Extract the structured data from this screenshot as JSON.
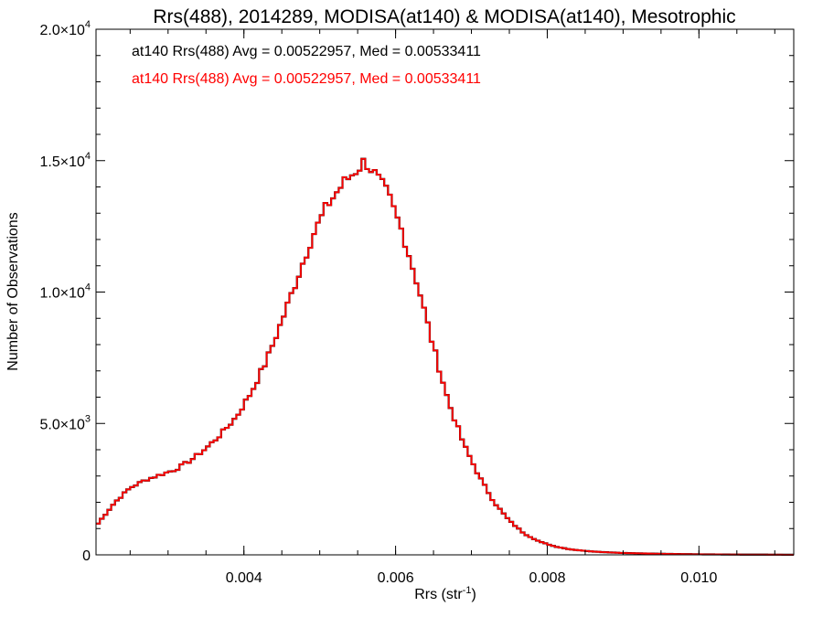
{
  "chart_data": {
    "type": "histogram",
    "title": "Rrs(488), 2014289, MODISA(at140) & MODISA(at140), Mesotrophic",
    "xlabel_main": "Rrs (str",
    "xlabel_sup": "-1",
    "xlabel_end": ")",
    "ylabel": "Number of Observations",
    "xlim": [
      0.00205,
      0.01125
    ],
    "ylim": [
      0,
      20000
    ],
    "x_ticks": [
      {
        "value": 0.004,
        "label": "0.004"
      },
      {
        "value": 0.006,
        "label": "0.006"
      },
      {
        "value": 0.008,
        "label": "0.008"
      },
      {
        "value": 0.01,
        "label": "0.010"
      }
    ],
    "y_ticks": [
      {
        "value": 0,
        "mant": "0",
        "exp": ""
      },
      {
        "value": 5000,
        "mant": "5.0×10",
        "exp": "3"
      },
      {
        "value": 10000,
        "mant": "1.0×10",
        "exp": "4"
      },
      {
        "value": 15000,
        "mant": "1.5×10",
        "exp": "4"
      },
      {
        "value": 20000,
        "mant": "2.0×10",
        "exp": "4"
      }
    ],
    "legend": [
      {
        "text": "at140 Rrs(488) Avg = 0.00522957, Med = 0.00533411",
        "color": "#000000"
      },
      {
        "text": "at140 Rrs(488) Avg = 0.00522957, Med = 0.00533411",
        "color": "#ff0000"
      }
    ],
    "series": [
      {
        "color": "#000000",
        "style": "step"
      },
      {
        "color": "#ff0000",
        "style": "step"
      }
    ],
    "bin_width": 5e-05,
    "curve": [
      [
        0.00205,
        1100
      ],
      [
        0.0023,
        2000
      ],
      [
        0.0025,
        2550
      ],
      [
        0.0027,
        2850
      ],
      [
        0.0029,
        3050
      ],
      [
        0.0031,
        3250
      ],
      [
        0.0033,
        3600
      ],
      [
        0.0035,
        4050
      ],
      [
        0.0037,
        4600
      ],
      [
        0.0039,
        5250
      ],
      [
        0.0041,
        6200
      ],
      [
        0.0043,
        7400
      ],
      [
        0.0045,
        8900
      ],
      [
        0.0047,
        10500
      ],
      [
        0.0049,
        12100
      ],
      [
        0.0051,
        13300
      ],
      [
        0.0053,
        14100
      ],
      [
        0.0055,
        14700
      ],
      [
        0.0056,
        15000
      ],
      [
        0.0057,
        14600
      ],
      [
        0.0059,
        13700
      ],
      [
        0.0061,
        12200
      ],
      [
        0.0063,
        10200
      ],
      [
        0.0065,
        7900
      ],
      [
        0.0067,
        5800
      ],
      [
        0.0069,
        4200
      ],
      [
        0.0071,
        3000
      ],
      [
        0.0073,
        2000
      ],
      [
        0.0075,
        1300
      ],
      [
        0.0077,
        800
      ],
      [
        0.0079,
        500
      ],
      [
        0.0081,
        320
      ],
      [
        0.0083,
        210
      ],
      [
        0.0085,
        150
      ],
      [
        0.0087,
        110
      ],
      [
        0.009,
        70
      ],
      [
        0.0095,
        40
      ],
      [
        0.01,
        20
      ],
      [
        0.0105,
        10
      ],
      [
        0.01125,
        5
      ]
    ]
  }
}
